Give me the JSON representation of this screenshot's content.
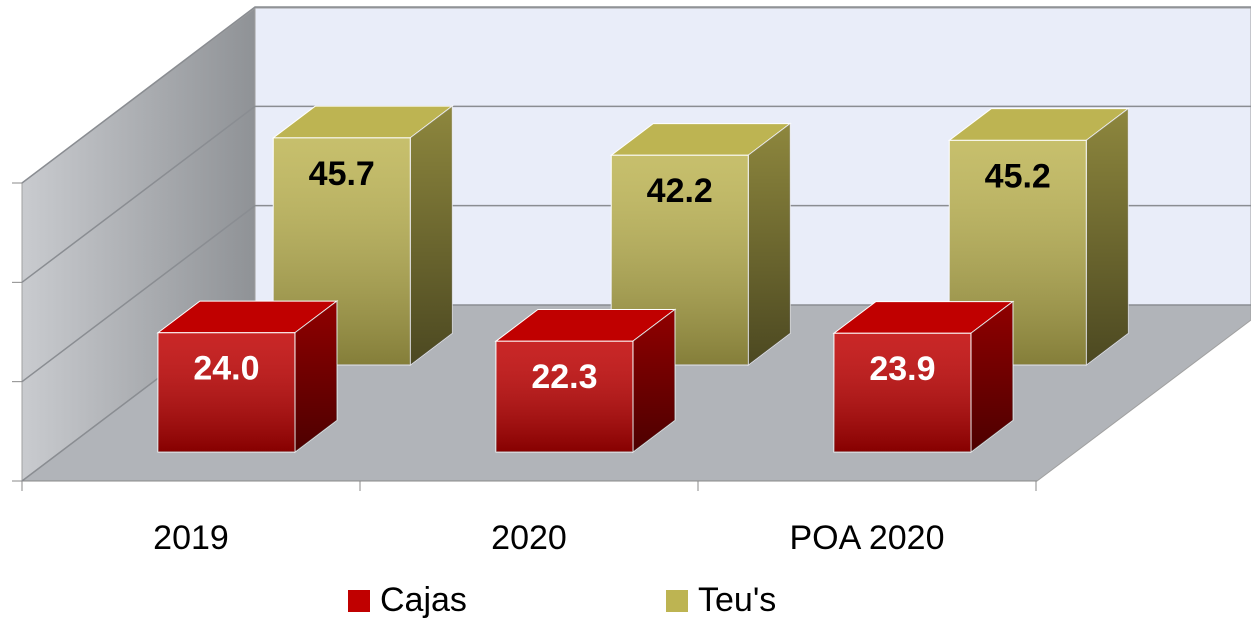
{
  "chart_data": {
    "type": "bar3d",
    "categories": [
      "2019",
      "2020",
      "POA 2020"
    ],
    "series": [
      {
        "name": "Cajas",
        "color": "#c00000",
        "values": [
          24.0,
          22.3,
          23.9
        ],
        "value_labels": [
          "24.0",
          "22.3",
          "23.9"
        ]
      },
      {
        "name": "Teu's",
        "color": "#bdb452",
        "values": [
          45.7,
          42.2,
          45.2
        ],
        "value_labels": [
          "45.7",
          "42.2",
          "45.2"
        ]
      }
    ],
    "ylim": [
      0,
      60
    ],
    "yticks": [
      0,
      20,
      40,
      60
    ],
    "grid": true,
    "legend": "bottom"
  }
}
